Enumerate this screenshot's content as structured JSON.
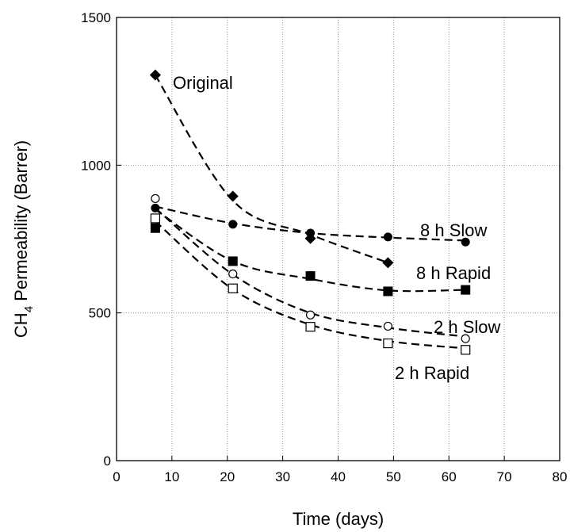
{
  "chart_data": {
    "type": "scatter",
    "title": "",
    "xlabel": "Time (days)",
    "ylabel": {
      "prefix": "CH",
      "subscript": "4",
      "suffix": " Permeability (Barrer)"
    },
    "xlim": [
      0,
      80
    ],
    "ylim": [
      0,
      1500
    ],
    "x_ticks": [
      "0",
      "10",
      "20",
      "30",
      "40",
      "50",
      "60",
      "70",
      "80"
    ],
    "y_ticks": [
      "0",
      "500",
      "1000",
      "1500"
    ],
    "grid": true,
    "legend": "none",
    "series": [
      {
        "name": "Original",
        "marker": "diamond-filled",
        "x": [
          7,
          21,
          35,
          49
        ],
        "y": [
          1305,
          895,
          752,
          670
        ],
        "fit_y": [
          1305,
          880,
          765,
          670
        ]
      },
      {
        "name": "8 h Slow",
        "marker": "circle-filled",
        "x": [
          7,
          21,
          35,
          49,
          63
        ],
        "y": [
          855,
          800,
          770,
          757,
          740
        ],
        "fit_y": [
          860,
          803,
          770,
          755,
          745
        ]
      },
      {
        "name": "8 h Rapid",
        "marker": "square-filled",
        "x": [
          7,
          21,
          35,
          49,
          63
        ],
        "y": [
          787,
          675,
          625,
          573,
          578
        ],
        "fit_y": [
          850,
          675,
          615,
          576,
          578
        ]
      },
      {
        "name": "2 h Slow",
        "marker": "circle-open",
        "x": [
          7,
          21,
          35,
          49,
          63
        ],
        "y": [
          887,
          632,
          493,
          455,
          413
        ],
        "fit_y": [
          855,
          630,
          500,
          450,
          420
        ]
      },
      {
        "name": "2 h Rapid",
        "marker": "square-open",
        "x": [
          7,
          21,
          35,
          49,
          63
        ],
        "y": [
          820,
          583,
          453,
          397,
          375
        ],
        "fit_y": [
          810,
          580,
          460,
          405,
          380
        ]
      }
    ]
  }
}
